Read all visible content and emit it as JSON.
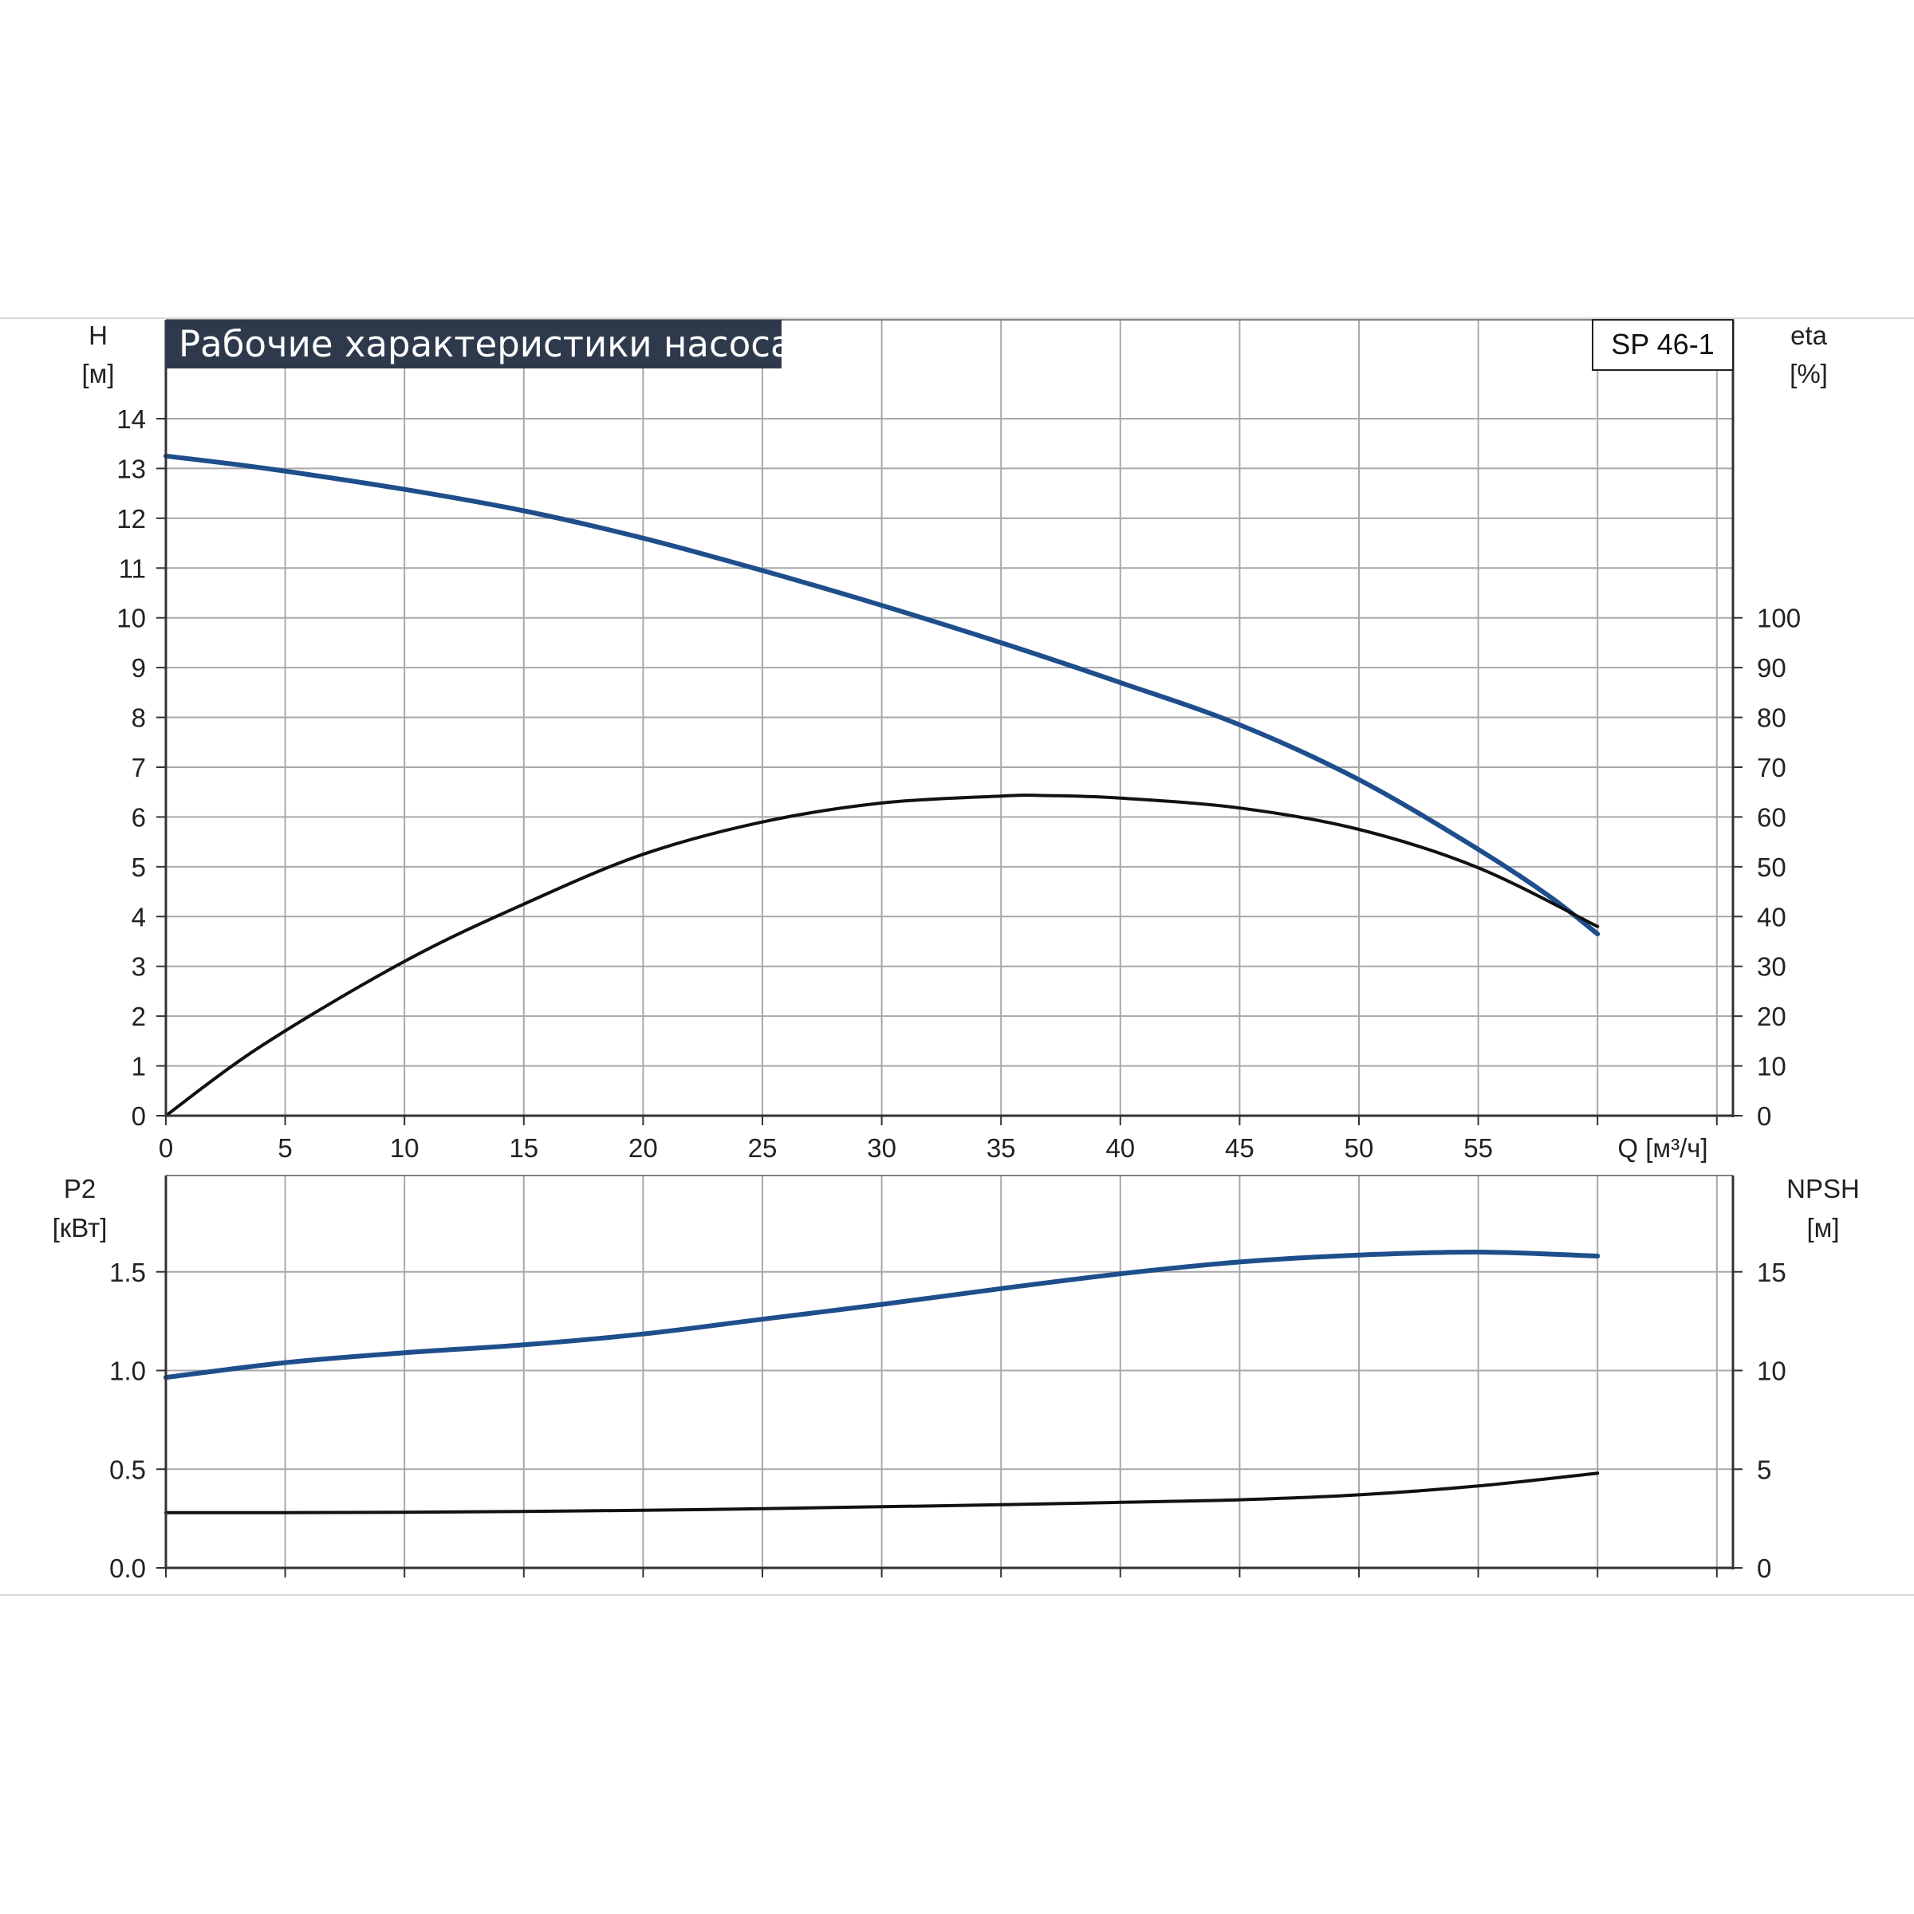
{
  "colors": {
    "accent": "#1f4e8c",
    "title_bg": "#2e3a4c",
    "grid": "#a9a9a9",
    "curve_dark": "#111111"
  },
  "chart_data": [
    {
      "type": "line",
      "title": "Рабочие характеристики насоса",
      "model_label": "SP 46-1",
      "xlabel": "Q [м³/ч]",
      "ylabel_left": [
        "H",
        "[м]"
      ],
      "ylabel_right": [
        "eta",
        "[%]"
      ],
      "x_ticks": [
        "0",
        "5",
        "10",
        "15",
        "20",
        "25",
        "30",
        "35",
        "40",
        "45",
        "50",
        "55"
      ],
      "y_left_ticks": [
        "0",
        "1",
        "2",
        "3",
        "4",
        "5",
        "6",
        "7",
        "8",
        "9",
        "10",
        "11",
        "12",
        "13",
        "14"
      ],
      "y_right_ticks": [
        "0",
        "10",
        "20",
        "30",
        "40",
        "50",
        "60",
        "70",
        "80",
        "90",
        "100"
      ],
      "xlim": [
        0,
        65
      ],
      "ylim_left": [
        0,
        16
      ],
      "ylim_right": [
        0,
        160
      ],
      "grid": true,
      "series": [
        {
          "axis": "left",
          "color": "#1f4e8c",
          "x": [
            0,
            4.2,
            10,
            15,
            20,
            25,
            30,
            35,
            40,
            45,
            50,
            55,
            58,
            60
          ],
          "y": [
            13.25,
            13.0,
            12.58,
            12.15,
            11.6,
            10.95,
            10.25,
            9.5,
            8.7,
            7.85,
            6.75,
            5.35,
            4.4,
            3.65
          ]
        },
        {
          "axis": "right",
          "color": "#111111",
          "x": [
            0,
            4,
            10,
            15,
            20,
            25,
            30,
            35,
            37,
            40,
            45,
            50,
            55,
            60
          ],
          "y": [
            0,
            14,
            31,
            42.5,
            52.5,
            59,
            62.8,
            64.2,
            64.3,
            63.8,
            61.8,
            57.5,
            49.8,
            38
          ]
        }
      ]
    },
    {
      "type": "line",
      "ylabel_left": [
        "P2",
        "[кВт]"
      ],
      "ylabel_right": [
        "NPSH",
        "[м]"
      ],
      "y_left_ticks": [
        "0.0",
        "0.5",
        "1.0",
        "1.5"
      ],
      "y_right_ticks": [
        "0",
        "5",
        "10",
        "15"
      ],
      "xlim": [
        0,
        65
      ],
      "ylim_left": [
        0,
        2.0
      ],
      "ylim_right": [
        0,
        20
      ],
      "grid": true,
      "series": [
        {
          "axis": "left",
          "color": "#1f4e8c",
          "x": [
            0,
            5,
            10,
            15,
            20,
            25,
            30,
            35,
            40,
            45,
            50,
            55,
            60
          ],
          "y": [
            0.965,
            1.04,
            1.09,
            1.13,
            1.185,
            1.26,
            1.335,
            1.415,
            1.49,
            1.55,
            1.585,
            1.6,
            1.58
          ]
        },
        {
          "axis": "right",
          "color": "#111111",
          "x": [
            0,
            5,
            10,
            15,
            20,
            25,
            30,
            35,
            40,
            45,
            50,
            55,
            60
          ],
          "y": [
            2.8,
            2.8,
            2.82,
            2.86,
            2.92,
            3.0,
            3.1,
            3.2,
            3.32,
            3.45,
            3.7,
            4.15,
            4.8
          ]
        }
      ]
    }
  ]
}
